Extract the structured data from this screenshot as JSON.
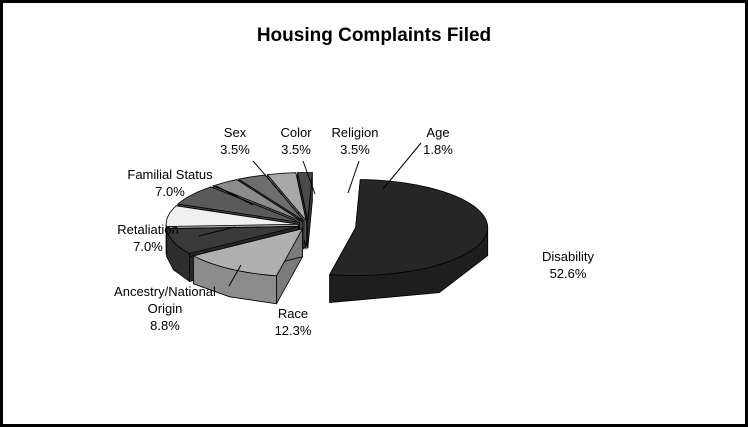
{
  "chart_data": {
    "type": "pie",
    "title": "Housing Complaints Filed",
    "categories": [
      "Disability",
      "Race",
      "Ancestry/National Origin",
      "Retaliation",
      "Familial Status",
      "Sex",
      "Color",
      "Religion",
      "Age"
    ],
    "values": [
      52.6,
      12.3,
      8.8,
      7.0,
      7.0,
      3.5,
      3.5,
      3.5,
      1.8
    ],
    "value_labels": [
      "52.6%",
      "12.3%",
      "8.8%",
      "7.0%",
      "7.0%",
      "3.5%",
      "3.5%",
      "3.5%",
      "1.8%"
    ],
    "colors": [
      "#262626",
      "#b0b0b0",
      "#3a3a3a",
      "#f0f0f0",
      "#5a5a5a",
      "#8c8c8c",
      "#6e6e6e",
      "#a8a8a8",
      "#4a4a4a"
    ]
  }
}
